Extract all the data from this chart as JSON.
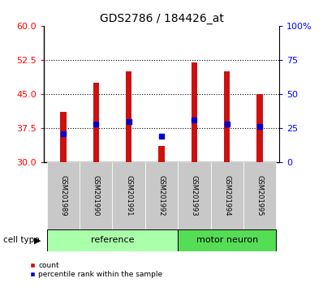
{
  "title": "GDS2786 / 184426_at",
  "samples": [
    "GSM201989",
    "GSM201990",
    "GSM201991",
    "GSM201992",
    "GSM201993",
    "GSM201994",
    "GSM201995"
  ],
  "bar_tops": [
    41.0,
    47.5,
    50.0,
    33.5,
    52.0,
    50.0,
    45.0
  ],
  "bar_bottom": 30.0,
  "percentile_ranks": [
    21,
    28,
    30,
    19,
    31,
    28,
    26
  ],
  "left_ylim": [
    30,
    60
  ],
  "right_ylim": [
    0,
    100
  ],
  "left_yticks": [
    30,
    37.5,
    45,
    52.5,
    60
  ],
  "right_yticks": [
    0,
    25,
    50,
    75,
    100
  ],
  "right_yticklabels": [
    "0",
    "25",
    "50",
    "75",
    "100%"
  ],
  "bar_color": "#cc1111",
  "percentile_color": "#0000cc",
  "groups": [
    {
      "label": "reference",
      "start": 0,
      "end": 4,
      "color": "#aaffaa"
    },
    {
      "label": "motor neuron",
      "start": 4,
      "end": 7,
      "color": "#55dd55"
    }
  ],
  "group_row_label": "cell type",
  "legend_items": [
    {
      "label": "count",
      "color": "#cc1111"
    },
    {
      "label": "percentile rank within the sample",
      "color": "#0000cc"
    }
  ],
  "background_color": "#ffffff",
  "tick_label_area_color": "#c8c8c8",
  "bar_width": 0.18,
  "grid_color": "#000000"
}
